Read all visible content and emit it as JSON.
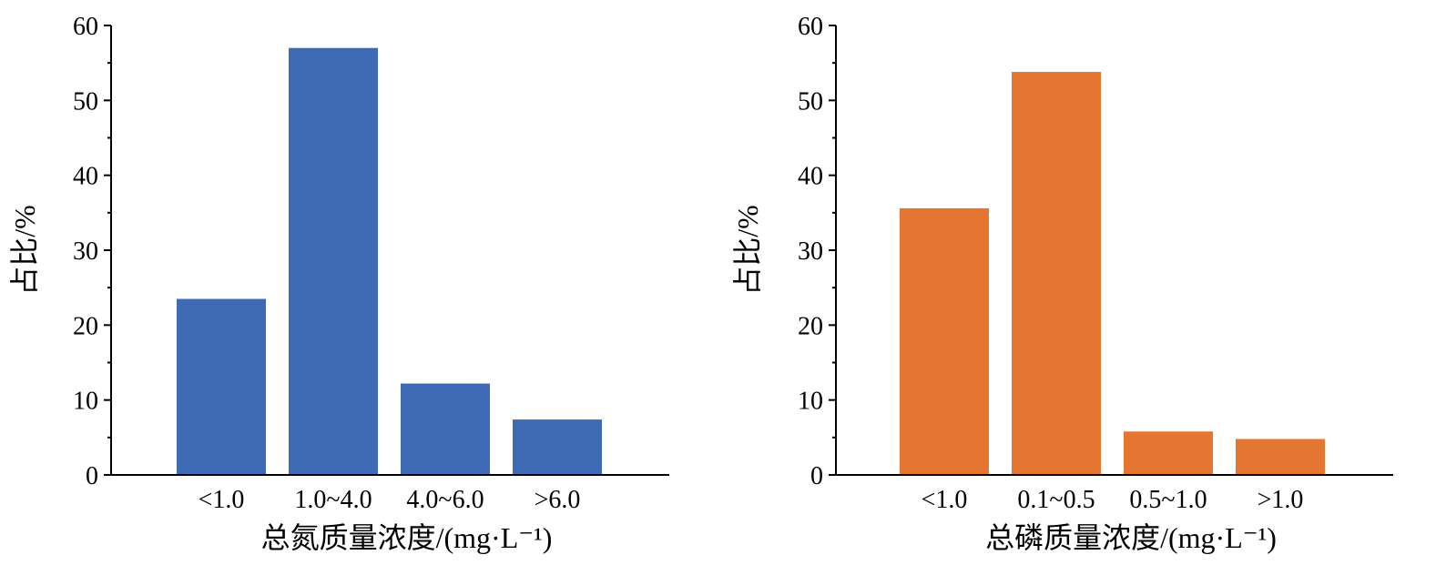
{
  "chart_data": [
    {
      "type": "bar",
      "categories": [
        "<1.0",
        "1.0~4.0",
        "4.0~6.0",
        ">6.0"
      ],
      "values": [
        23.5,
        57.0,
        12.2,
        7.4
      ],
      "xlabel": "总氮质量浓度/(mg·L⁻¹)",
      "ylabel": "占比/%",
      "ylim": [
        0,
        60
      ],
      "yticks": [
        0,
        10,
        20,
        30,
        40,
        50,
        60
      ],
      "color": "#3F6BB4",
      "grid": false
    },
    {
      "type": "bar",
      "categories": [
        "<1.0",
        "0.1~0.5",
        "0.5~1.0",
        ">1.0"
      ],
      "values": [
        35.6,
        53.8,
        5.8,
        4.8
      ],
      "xlabel": "总磷质量浓度/(mg·L⁻¹)",
      "ylabel": "占比/%",
      "ylim": [
        0,
        60
      ],
      "yticks": [
        0,
        10,
        20,
        30,
        40,
        50,
        60
      ],
      "color": "#E57632",
      "grid": false
    }
  ]
}
